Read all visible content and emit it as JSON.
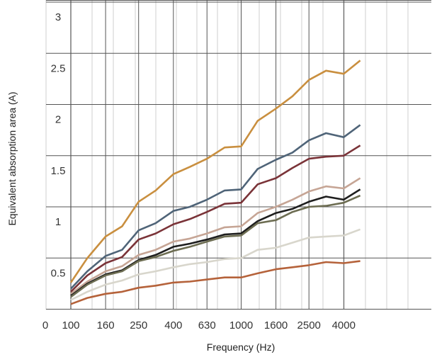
{
  "chart_data": {
    "type": "line",
    "xlabel": "Frequency (Hz)",
    "ylabel": "Equivalent absorption area (A)",
    "x_tick_labels": [
      "0",
      "100",
      "160",
      "250",
      "400",
      "630",
      "1000",
      "1600",
      "2500",
      "4000"
    ],
    "y_tick_labels": [
      "0.5",
      "1",
      "1.5",
      "2",
      "2.5",
      "3"
    ],
    "x_tick_values": [
      100,
      160,
      250,
      400,
      630,
      1000,
      1600,
      2500,
      4000
    ],
    "ylim": [
      0,
      3
    ],
    "grid": true,
    "x": [
      100,
      125,
      160,
      200,
      250,
      315,
      400,
      500,
      630,
      800,
      1000,
      1250,
      1600,
      2000,
      2500,
      3150,
      4000,
      5000
    ],
    "series": [
      {
        "color": "#c98f3f",
        "values": [
          0.26,
          0.5,
          0.71,
          0.81,
          1.05,
          1.16,
          1.32,
          1.39,
          1.47,
          1.58,
          1.59,
          1.84,
          1.96,
          2.08,
          2.24,
          2.33,
          2.3,
          2.43
        ]
      },
      {
        "color": "#4f6478",
        "values": [
          0.2,
          0.37,
          0.52,
          0.58,
          0.77,
          0.84,
          0.96,
          1.0,
          1.07,
          1.16,
          1.17,
          1.37,
          1.46,
          1.53,
          1.65,
          1.72,
          1.68,
          1.8
        ]
      },
      {
        "color": "#7a3338",
        "values": [
          0.17,
          0.33,
          0.45,
          0.51,
          0.68,
          0.74,
          0.83,
          0.88,
          0.95,
          1.03,
          1.04,
          1.22,
          1.28,
          1.38,
          1.47,
          1.49,
          1.5,
          1.6
        ]
      },
      {
        "color": "#c6a595",
        "values": [
          0.15,
          0.27,
          0.37,
          0.42,
          0.53,
          0.58,
          0.66,
          0.69,
          0.74,
          0.8,
          0.81,
          0.94,
          1.0,
          1.07,
          1.15,
          1.2,
          1.18,
          1.28
        ]
      },
      {
        "color": "#1e1e1e",
        "values": [
          0.13,
          0.25,
          0.34,
          0.38,
          0.48,
          0.53,
          0.61,
          0.64,
          0.68,
          0.73,
          0.74,
          0.86,
          0.94,
          0.98,
          1.05,
          1.1,
          1.07,
          1.17
        ]
      },
      {
        "color": "#6d6d52",
        "values": [
          0.12,
          0.24,
          0.33,
          0.37,
          0.47,
          0.51,
          0.57,
          0.61,
          0.66,
          0.71,
          0.72,
          0.84,
          0.87,
          0.95,
          1.0,
          1.01,
          1.04,
          1.11
        ]
      },
      {
        "color": "#d8d6cc",
        "values": [
          0.09,
          0.17,
          0.24,
          0.28,
          0.34,
          0.37,
          0.41,
          0.44,
          0.46,
          0.49,
          0.5,
          0.58,
          0.6,
          0.65,
          0.7,
          0.71,
          0.72,
          0.78
        ]
      },
      {
        "color": "#b5623a",
        "values": [
          0.05,
          0.11,
          0.15,
          0.17,
          0.21,
          0.23,
          0.26,
          0.27,
          0.29,
          0.31,
          0.31,
          0.35,
          0.39,
          0.41,
          0.43,
          0.46,
          0.45,
          0.47
        ]
      }
    ]
  }
}
